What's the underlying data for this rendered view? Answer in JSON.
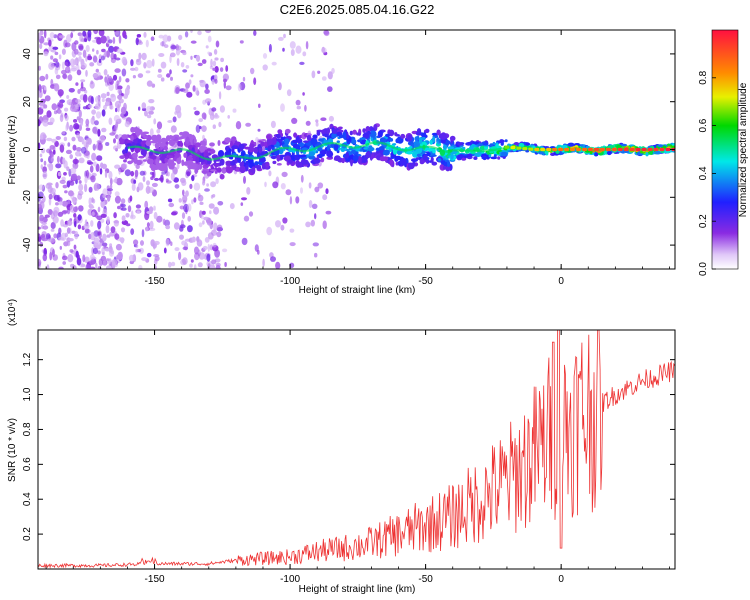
{
  "title": "C2E6.2025.085.04.16.G22",
  "chart_data": [
    {
      "type": "heatmap",
      "xlabel": "Height of straight line (km)",
      "ylabel": "Frequency (Hz)",
      "xlim": [
        -193,
        42
      ],
      "ylim": [
        -50,
        50
      ],
      "xticks": [
        -150,
        -100,
        -50,
        0
      ],
      "yticks": [
        40,
        20,
        0,
        -20,
        -40
      ],
      "colorbar": {
        "label": "Normalized spectral amplitude",
        "range": [
          0,
          1
        ],
        "ticks": [
          "0.0",
          "0.2",
          "0.4",
          "0.6",
          "0.8"
        ]
      },
      "ridge": {
        "x": [
          -160,
          -150,
          -140,
          -130,
          -120,
          -110,
          -100,
          -90,
          -80,
          -70,
          -60,
          -50,
          -40,
          -30,
          -20,
          -10,
          0,
          10,
          20,
          30,
          40
        ],
        "frequency": [
          0,
          0,
          -1,
          -3,
          -4,
          -2,
          0,
          1,
          2,
          2,
          1,
          0,
          0,
          -1,
          1,
          0,
          0,
          0,
          0,
          0,
          0
        ],
        "amplitude": [
          0.25,
          0.22,
          0.2,
          0.25,
          0.35,
          0.38,
          0.42,
          0.45,
          0.5,
          0.48,
          0.5,
          0.55,
          0.58,
          0.62,
          0.7,
          0.72,
          0.85,
          0.9,
          0.92,
          0.95,
          0.97
        ]
      }
    },
    {
      "type": "line",
      "xlabel": "Height of straight line (km)",
      "ylabel": "SNR (10 * v/v)",
      "y_multiplier": "(x10⁴)",
      "xlim": [
        -193,
        42
      ],
      "ylim": [
        0,
        1.37
      ],
      "xticks": [
        -150,
        -100,
        -50,
        0
      ],
      "yticks": [
        "0.2",
        "0.4",
        "0.6",
        "0.8",
        "1.0",
        "1.2"
      ],
      "color": "#ee3333",
      "series": [
        {
          "x": [
            -190,
            -170,
            -150,
            -130,
            -120,
            -110,
            -100,
            -90,
            -80,
            -70,
            -60,
            -50,
            -40,
            -30,
            -20,
            -10,
            -5,
            0,
            10,
            20,
            30,
            40
          ],
          "values": [
            0.02,
            0.02,
            0.03,
            0.03,
            0.05,
            0.06,
            0.07,
            0.1,
            0.12,
            0.15,
            0.2,
            0.25,
            0.3,
            0.4,
            0.5,
            0.65,
            0.75,
            0.8,
            0.9,
            1.0,
            1.08,
            1.13
          ]
        }
      ]
    }
  ]
}
